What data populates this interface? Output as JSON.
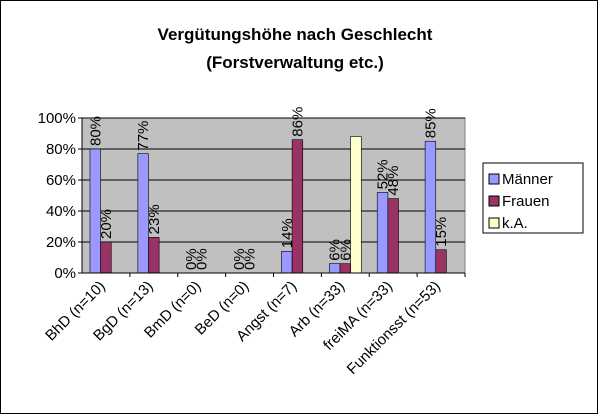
{
  "chart_data": {
    "type": "bar",
    "title": [
      "Vergütungshöhe nach Geschlecht",
      "(Forstverwaltung etc.)"
    ],
    "categories": [
      "BhD (n=10)",
      "BgD (n=13)",
      "BmD (n=0)",
      "BeD (n=0)",
      "Angst (n=7)",
      "Arb (n=33)",
      "freiMA (n=33)",
      "Funktionsst (n=53)"
    ],
    "series": [
      {
        "name": "Männer",
        "color": "#9999ff",
        "values": [
          80,
          77,
          0,
          0,
          14,
          6,
          52,
          85
        ],
        "value_labels": [
          "80%",
          "77%",
          "0%",
          "0%",
          "14%",
          "6%",
          "52%",
          "85%"
        ]
      },
      {
        "name": "Frauen",
        "color": "#993366",
        "values": [
          20,
          23,
          0,
          0,
          86,
          6,
          48,
          15
        ],
        "value_labels": [
          "20%",
          "23%",
          "0%",
          "0%",
          "86%",
          "6%",
          "48%",
          "15%"
        ]
      },
      {
        "name": "k.A.",
        "color": "#ffffcc",
        "values": [
          0,
          0,
          0,
          0,
          0,
          88,
          0,
          0
        ]
      }
    ],
    "ylim": [
      0,
      100
    ],
    "yticks": [
      {
        "value": 0,
        "label": "0%"
      },
      {
        "value": 20,
        "label": "20%"
      },
      {
        "value": 40,
        "label": "40%"
      },
      {
        "value": 60,
        "label": "60%"
      },
      {
        "value": 80,
        "label": "80%"
      },
      {
        "value": 100,
        "label": "100%"
      }
    ],
    "grid": true,
    "legend": "right"
  }
}
